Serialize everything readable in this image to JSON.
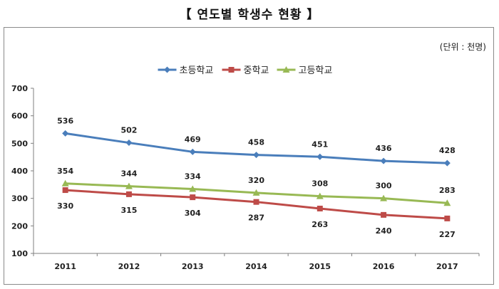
{
  "page_title": "【 연도별 학생수 현황 】",
  "unit_note": "(단위 : 천명)",
  "chart_data": {
    "type": "line",
    "title": "",
    "xlabel": "",
    "ylabel": "",
    "categories": [
      "2011",
      "2012",
      "2013",
      "2014",
      "2015",
      "2016",
      "2017"
    ],
    "ylim": [
      100,
      700
    ],
    "yticks": [
      100,
      200,
      300,
      400,
      500,
      600,
      700
    ],
    "grid": false,
    "legend_position": "top",
    "series": [
      {
        "name": "초등학교",
        "values": [
          536,
          502,
          469,
          458,
          451,
          436,
          428
        ],
        "color": "#4a7ebb",
        "marker": "diamond",
        "label_pos": "above"
      },
      {
        "name": "중학교",
        "values": [
          330,
          315,
          304,
          287,
          263,
          240,
          227
        ],
        "color": "#be4b48",
        "marker": "square",
        "label_pos": "below"
      },
      {
        "name": "고등학교",
        "values": [
          354,
          344,
          334,
          320,
          308,
          300,
          283
        ],
        "color": "#98b954",
        "marker": "triangle",
        "label_pos": "above"
      }
    ]
  }
}
